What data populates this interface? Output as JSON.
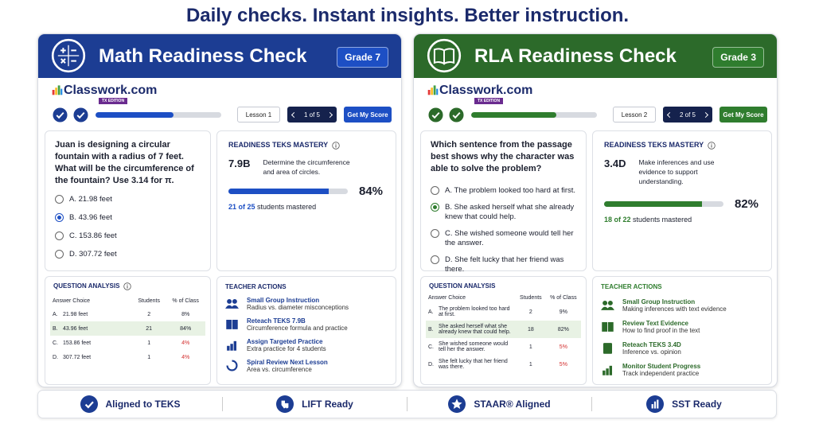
{
  "header": {
    "title": "Daily checks. Instant insights. Better instruction."
  },
  "panels": [
    {
      "title": "Math Readiness Check",
      "grade": "Grade 7",
      "color": "#1c3d93",
      "accent": "#1d4fc4",
      "brand": "Classwork.com",
      "edition": "TX EDITION",
      "lesson": "Lesson 1",
      "pager": "1 of 5",
      "score_button": "Get My Score",
      "question": "Juan is designing a circular fountain with a radius of 7 feet. What will be the circumference of the fountain? Use 3.14 for π.",
      "options": [
        "A. 21.98 feet",
        "B. 43.96 feet",
        "C. 153.86 feet",
        "D. 307.72 feet"
      ],
      "selected": 1,
      "mastery": {
        "heading": "READINESS TEKS MASTERY",
        "teks": "7.9B",
        "description": "Determine the circumference and area of circles.",
        "percent": "84%",
        "count": "21 of 25",
        "count_text": "students mastered"
      },
      "analysis": {
        "heading": "QUESTION ANALYSIS",
        "columns": [
          "Answer Choice",
          "Students",
          "% of Class"
        ],
        "rows": [
          [
            "A.",
            "21.98 feet",
            "2",
            "8%"
          ],
          [
            "B.",
            "43.96 feet",
            "21",
            "84%"
          ],
          [
            "C.",
            "153.86 feet",
            "1",
            "4%"
          ],
          [
            "D.",
            "307.72 feet",
            "1",
            "4%"
          ]
        ]
      },
      "actions": {
        "heading": "TEACHER ACTIONS",
        "items": [
          {
            "title": "Small Group Instruction",
            "subtitle": "Radius vs. diameter misconceptions"
          },
          {
            "title": "Reteach TEKS 7.9B",
            "subtitle": "Circumference formula and practice"
          },
          {
            "title": "Assign Targeted Practice",
            "subtitle": "Extra practice for 4 students"
          },
          {
            "title": "Spiral Review Next Lesson",
            "subtitle": "Area vs. circumference"
          }
        ]
      }
    },
    {
      "title": "RLA Readiness Check",
      "grade": "Grade 3",
      "color": "#2c6a2a",
      "accent": "#2f7d2e",
      "brand": "Classwork.com",
      "edition": "TX EDITION",
      "lesson": "Lesson 2",
      "pager": "2 of 5",
      "score_button": "Get My Score",
      "question": "Which sentence from the passage best shows why the character was able to solve the problem?",
      "options": [
        "A. The problem looked too hard at first.",
        "B. She asked herself what she already knew that could help.",
        "C. She wished someone would tell her the answer.",
        "D. She felt lucky that her friend was there."
      ],
      "selected": 1,
      "mastery": {
        "heading": "READINESS TEKS MASTERY",
        "teks": "3.4D",
        "description": "Make inferences and use evidence to support understanding.",
        "percent": "82%",
        "count": "18 of 22",
        "count_text": "students mastered"
      },
      "analysis": {
        "heading": "QUESTION ANALYSIS",
        "columns": [
          "Answer Choice",
          "Students",
          "% of Class"
        ],
        "rows": [
          [
            "A.",
            "The problem looked too hard at first.",
            "2",
            "9%"
          ],
          [
            "B.",
            "She asked herself what she already knew that could help.",
            "18",
            "82%"
          ],
          [
            "C.",
            "She wished someone would tell her the answer.",
            "1",
            "5%"
          ],
          [
            "D.",
            "She felt lucky that her friend was there.",
            "1",
            "5%"
          ]
        ]
      },
      "actions": {
        "heading": "TEACHER ACTIONS",
        "items": [
          {
            "title": "Small Group Instruction",
            "subtitle": "Making inferences with text evidence"
          },
          {
            "title": "Review Text Evidence",
            "subtitle": "How to find proof in the text"
          },
          {
            "title": "Reteach TEKS 3.4D",
            "subtitle": "Inference vs. opinion"
          },
          {
            "title": "Monitor Student Progress",
            "subtitle": "Track independent practice"
          }
        ]
      }
    }
  ],
  "footer": {
    "badges": [
      "Aligned to TEKS",
      "LIFT Ready",
      "STAAR® Aligned",
      "SST Ready"
    ]
  }
}
